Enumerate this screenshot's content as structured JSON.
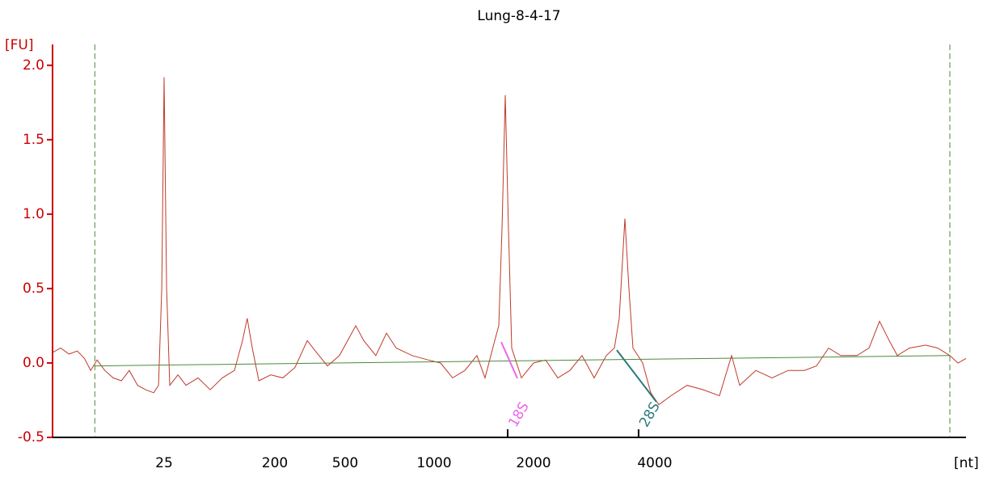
{
  "chart_data": {
    "type": "line",
    "title": "Lung-8-4-17",
    "y_unit_label": "[FU]",
    "x_unit_label": "[nt]",
    "xlim": [
      3,
      24000
    ],
    "xticks": [
      25,
      200,
      500,
      1000,
      2000,
      4000
    ],
    "ylim": [
      -0.5,
      2.14
    ],
    "yticks": [
      -0.5,
      {
        "value": 0,
        "label": "0.0"
      },
      0.5,
      {
        "value": 1,
        "label": "1.0"
      },
      1.5,
      {
        "value": 2,
        "label": "2.0"
      }
    ],
    "series": [
      {
        "color": "#c0392b",
        "x": [
          3,
          3.5,
          4.1,
          4.8,
          5.5,
          6.2,
          7.0,
          8.1,
          9.5,
          11.1,
          12.9,
          15.1,
          17.6,
          20.5,
          22.5,
          23.9,
          25,
          26.2,
          27.8,
          32.4,
          37.7,
          47.3,
          59.4,
          74.6,
          93.6,
          109,
          119,
          131,
          148,
          185,
          222,
          260,
          305,
          339,
          397,
          464,
          543,
          578,
          635,
          690,
          744,
          843,
          957,
          1046,
          1138,
          1239,
          1348,
          1426,
          1526,
          1570,
          1605,
          1642,
          1679,
          1718,
          1838,
          2000,
          2144,
          2297,
          2462,
          2639,
          2828,
          3031,
          3175,
          3264,
          3372,
          3450,
          3531,
          3732,
          3909,
          4094,
          4390,
          4819,
          5288,
          5804,
          6224,
          6521,
          7158,
          7855,
          8621,
          9462,
          10146,
          10880,
          11666,
          12805,
          13731,
          14587,
          15424,
          16160,
          17328,
          19016,
          20391,
          21867,
          22909,
          24000
        ],
        "values": [
          0.07,
          0.1,
          0.06,
          0.08,
          0.03,
          -0.05,
          0.02,
          -0.05,
          -0.1,
          -0.12,
          -0.05,
          -0.15,
          -0.18,
          -0.2,
          -0.15,
          0.5,
          1.92,
          0.5,
          -0.15,
          -0.08,
          -0.15,
          -0.1,
          -0.18,
          -0.1,
          -0.05,
          0.15,
          0.3,
          0.1,
          -0.12,
          -0.08,
          -0.1,
          -0.03,
          0.15,
          0.08,
          -0.02,
          0.05,
          0.25,
          0.15,
          0.05,
          0.2,
          0.1,
          0.05,
          0.02,
          0.0,
          -0.1,
          -0.05,
          0.05,
          -0.1,
          0.15,
          0.25,
          0.9,
          1.8,
          0.9,
          0.1,
          -0.1,
          0.0,
          0.02,
          -0.1,
          -0.05,
          0.05,
          -0.1,
          0.05,
          0.1,
          0.3,
          0.97,
          0.5,
          0.1,
          0.0,
          -0.2,
          -0.28,
          -0.22,
          -0.15,
          -0.18,
          -0.22,
          0.05,
          -0.15,
          -0.05,
          -0.1,
          -0.05,
          -0.05,
          -0.02,
          0.1,
          0.05,
          0.05,
          0.1,
          0.28,
          0.15,
          0.05,
          0.1,
          0.12,
          0.1,
          0.05,
          0.0,
          0.03
        ]
      },
      {
        "color": "#4a8a3a",
        "x": [
          6.7,
          21867
        ],
        "values": [
          -0.02,
          0.05
        ]
      }
    ],
    "vlines": [
      6.7,
      21867
    ],
    "vline_color": "#4a8a3a",
    "annotations": [
      {
        "text": "18S",
        "x": 1670,
        "color": "#ee66ee"
      },
      {
        "text": "28S",
        "x": 3646,
        "color": "#2e7b7b"
      }
    ],
    "axis_color": "#cc0000"
  }
}
